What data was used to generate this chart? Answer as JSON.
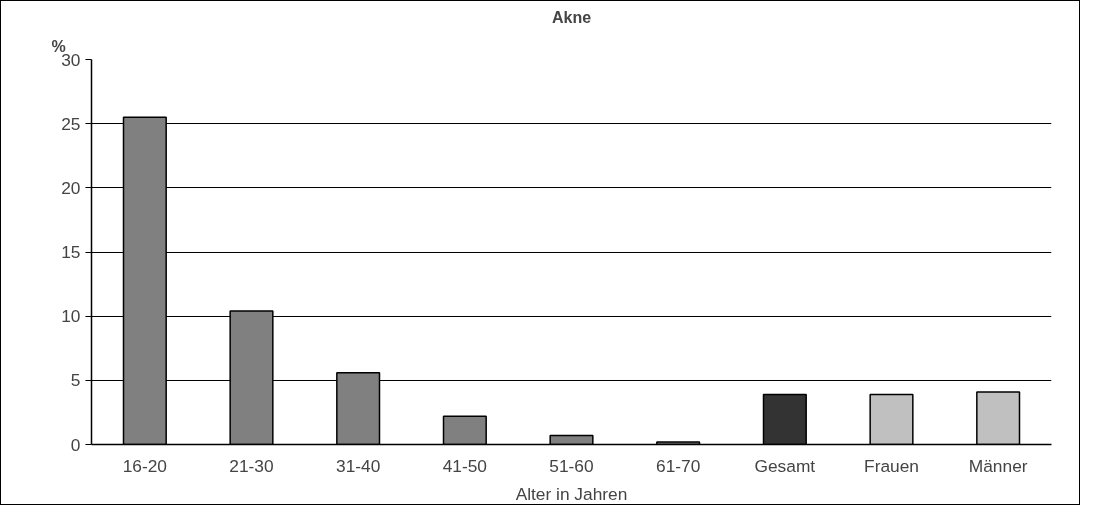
{
  "chart_data": {
    "type": "bar",
    "title": "Akne",
    "ylabel": "%",
    "xlabel": "Alter in Jahren",
    "categories": [
      "16-20",
      "21-30",
      "31-40",
      "41-50",
      "51-60",
      "61-70",
      "Gesamt",
      "Frauen",
      "Männer"
    ],
    "values": [
      25.5,
      10.4,
      5.6,
      2.2,
      0.7,
      0.2,
      3.9,
      3.9,
      4.1
    ],
    "colors": [
      "#808080",
      "#808080",
      "#808080",
      "#808080",
      "#808080",
      "#808080",
      "#333333",
      "#c0c0c0",
      "#c0c0c0"
    ],
    "ylim": [
      0,
      30
    ],
    "yticks": [
      0,
      5,
      10,
      15,
      20,
      25,
      30
    ],
    "grid": "y"
  }
}
